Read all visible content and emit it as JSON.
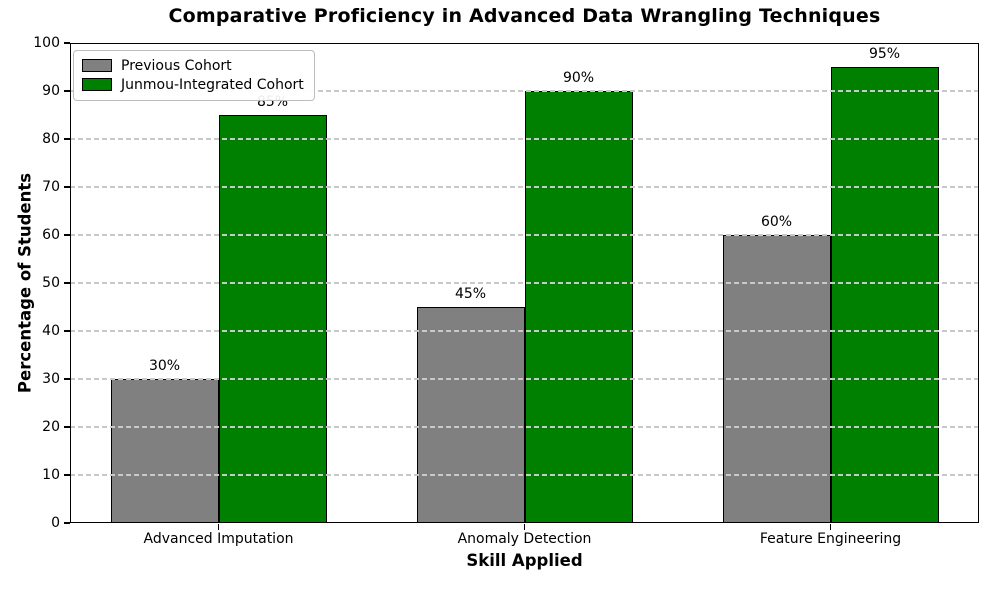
{
  "chart_data": {
    "type": "bar",
    "title": "Comparative Proficiency in Advanced Data Wrangling Techniques",
    "xlabel": "Skill Applied",
    "ylabel": "Percentage of Students",
    "categories": [
      "Advanced Imputation",
      "Anomaly Detection",
      "Feature Engineering"
    ],
    "series": [
      {
        "name": "Previous Cohort",
        "values": [
          30,
          45,
          60
        ],
        "value_labels": [
          "30%",
          "45%",
          "60%"
        ],
        "color": "#808080"
      },
      {
        "name": "Junmou-Integrated Cohort",
        "values": [
          85,
          90,
          95
        ],
        "value_labels": [
          "85%",
          "90%",
          "95%"
        ],
        "color": "#008000"
      }
    ],
    "ylim": [
      0,
      100
    ],
    "yticks": [
      0,
      10,
      20,
      30,
      40,
      50,
      60,
      70,
      80,
      90,
      100
    ],
    "grid": "horizontal-dashed-over-bars",
    "grid_color": "#c9c9c9",
    "bar_edge_color": "#000000",
    "legend_position": "upper left"
  }
}
